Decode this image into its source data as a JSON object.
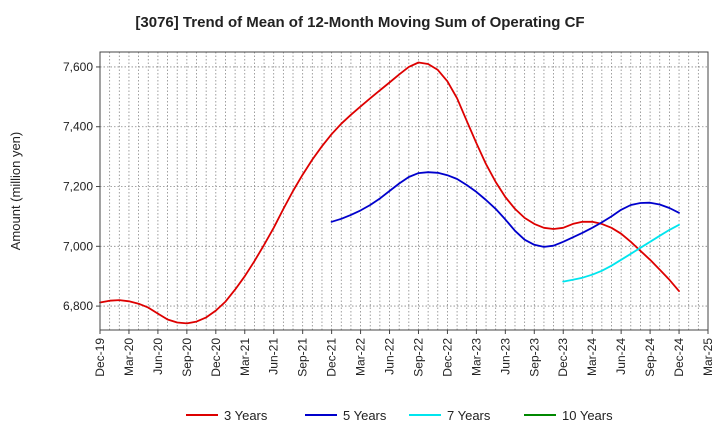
{
  "chart_data": {
    "type": "line",
    "title": "[3076]  Trend of Mean of 12-Month Moving Sum of Operating CF",
    "xlabel": "",
    "ylabel": "Amount (million yen)",
    "ylim": [
      6720,
      7650
    ],
    "y_ticks": [
      6800,
      7000,
      7200,
      7400,
      7600
    ],
    "y_tick_labels": [
      "6,800",
      "7,000",
      "7,200",
      "7,400",
      "7,600"
    ],
    "x_ticks": [
      "Dec-19",
      "Mar-20",
      "Jun-20",
      "Sep-20",
      "Dec-20",
      "Mar-21",
      "Jun-21",
      "Sep-21",
      "Dec-21",
      "Mar-22",
      "Jun-22",
      "Sep-22",
      "Dec-22",
      "Mar-23",
      "Jun-23",
      "Sep-23",
      "Dec-23",
      "Mar-24",
      "Jun-24",
      "Sep-24",
      "Dec-24",
      "Mar-25"
    ],
    "x_note": "x values are month offsets from Dec-19 (0 = Dec-19, 63 = Mar-25)",
    "xlim": [
      0,
      63
    ],
    "grid": true,
    "legend_position": "bottom",
    "series": [
      {
        "name": "3 Years",
        "color": "#dd0000",
        "x": [
          0,
          1,
          2,
          3,
          4,
          5,
          6,
          7,
          8,
          9,
          10,
          11,
          12,
          13,
          14,
          15,
          16,
          17,
          18,
          19,
          20,
          21,
          22,
          23,
          24,
          25,
          26,
          27,
          28,
          29,
          30,
          31,
          32,
          33,
          34,
          35,
          36,
          37,
          38,
          39,
          40,
          41,
          42,
          43,
          44,
          45,
          46,
          47,
          48,
          49,
          50,
          51,
          52,
          53,
          54,
          55,
          56,
          57,
          58,
          59,
          60
        ],
        "values": [
          6812,
          6818,
          6820,
          6816,
          6808,
          6795,
          6775,
          6755,
          6745,
          6742,
          6748,
          6762,
          6785,
          6815,
          6855,
          6900,
          6950,
          7005,
          7062,
          7125,
          7185,
          7240,
          7290,
          7335,
          7375,
          7410,
          7440,
          7468,
          7495,
          7522,
          7548,
          7575,
          7600,
          7615,
          7610,
          7590,
          7552,
          7495,
          7420,
          7345,
          7275,
          7215,
          7165,
          7125,
          7095,
          7075,
          7062,
          7058,
          7062,
          7075,
          7082,
          7082,
          7075,
          7062,
          7042,
          7015,
          6985,
          6955,
          6922,
          6888,
          6850
        ]
      },
      {
        "name": "5 Years",
        "color": "#0000cc",
        "x": [
          24,
          25,
          26,
          27,
          28,
          29,
          30,
          31,
          32,
          33,
          34,
          35,
          36,
          37,
          38,
          39,
          40,
          41,
          42,
          43,
          44,
          45,
          46,
          47,
          48,
          49,
          50,
          51,
          52,
          53,
          54,
          55,
          56,
          57,
          58,
          59,
          60
        ],
        "values": [
          7082,
          7092,
          7105,
          7120,
          7138,
          7160,
          7185,
          7210,
          7232,
          7245,
          7248,
          7246,
          7238,
          7225,
          7205,
          7182,
          7155,
          7125,
          7090,
          7052,
          7022,
          7005,
          6998,
          7002,
          7015,
          7030,
          7045,
          7062,
          7080,
          7100,
          7122,
          7138,
          7145,
          7146,
          7140,
          7128,
          7112
        ]
      },
      {
        "name": "7 Years",
        "color": "#00e5ee",
        "x": [
          48,
          49,
          50,
          51,
          52,
          53,
          54,
          55,
          56,
          57,
          58,
          59,
          60
        ],
        "values": [
          6882,
          6888,
          6895,
          6905,
          6918,
          6935,
          6955,
          6975,
          6995,
          7015,
          7035,
          7055,
          7072
        ]
      },
      {
        "name": "10 Years",
        "color": "#008800",
        "x": [],
        "values": []
      }
    ]
  }
}
